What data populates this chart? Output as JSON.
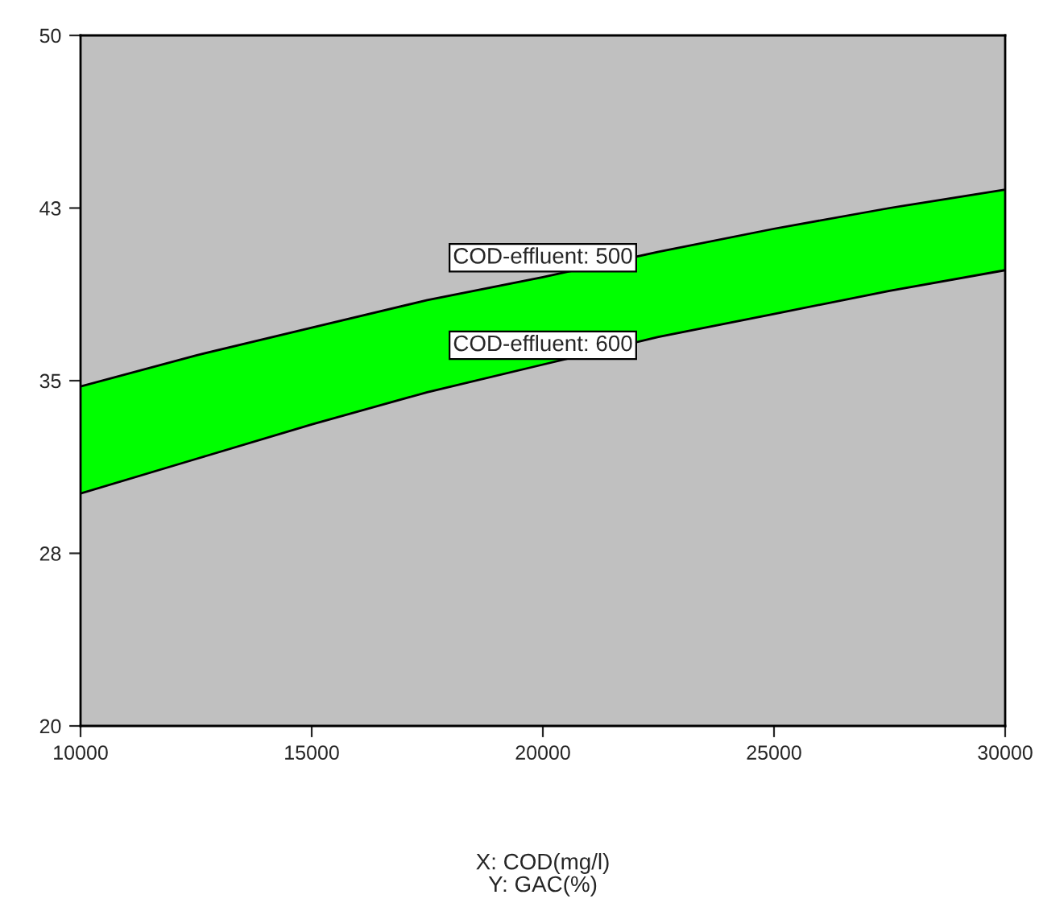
{
  "chart_data": {
    "type": "line",
    "xlabel": "X: COD(mg/l)\nY: GAC(%)",
    "x": [
      10000,
      12500,
      15000,
      17500,
      20000,
      22500,
      25000,
      27500,
      30000
    ],
    "series": [
      {
        "name": "COD-effluent: 500",
        "color": "#000000",
        "values": [
          34.75,
          36.1,
          37.3,
          38.5,
          39.5,
          40.6,
          41.6,
          42.5,
          43.3
        ],
        "lower": [
          30.1,
          31.6,
          33.1,
          34.5,
          35.7,
          36.9,
          37.9,
          38.9,
          39.8
        ],
        "upper": [
          34.75,
          36.1,
          37.3,
          38.5,
          39.5,
          40.6,
          41.6,
          42.5,
          43.3
        ]
      },
      {
        "name": "COD-effluent: 600",
        "color": "#000000",
        "values": [
          30.1,
          31.6,
          33.1,
          34.5,
          35.7,
          36.9,
          37.9,
          38.9,
          39.8
        ]
      }
    ],
    "xlim": [
      10000,
      30000
    ],
    "xticks": [
      10000,
      15000,
      20000,
      25000,
      30000
    ],
    "ylim": [
      20,
      50
    ],
    "yticks": [
      20,
      {
        "value": 27.5,
        "label": "28"
      },
      35,
      {
        "value": 42.5,
        "label": "43"
      },
      50
    ],
    "grid": false,
    "legend": false
  }
}
